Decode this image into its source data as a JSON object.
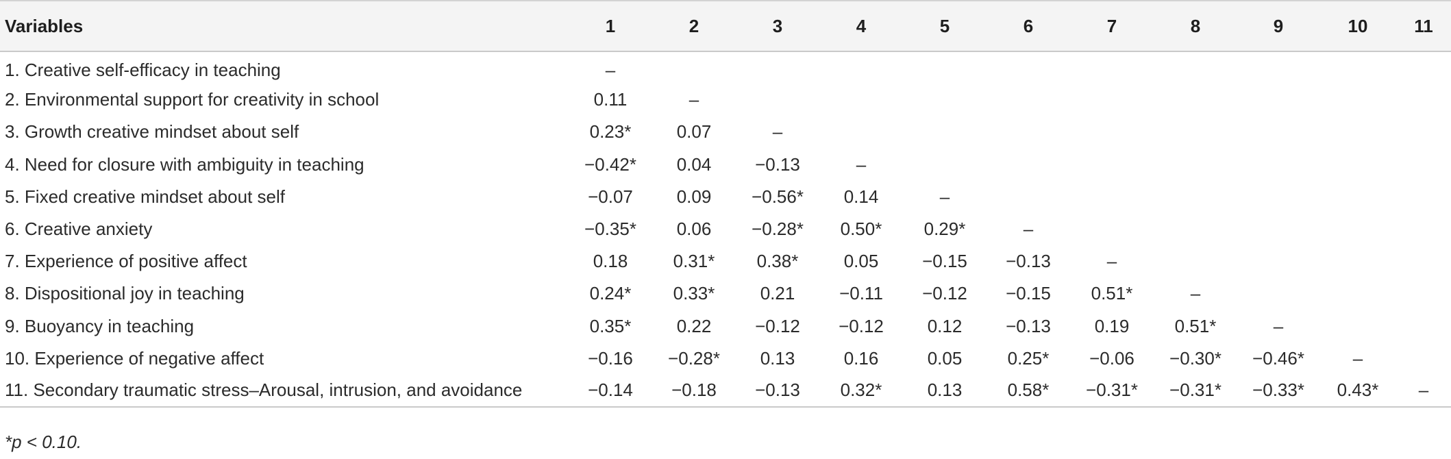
{
  "table": {
    "headers": [
      "Variables",
      "1",
      "2",
      "3",
      "4",
      "5",
      "6",
      "7",
      "8",
      "9",
      "10",
      "11"
    ],
    "rows": [
      {
        "label": "1. Creative self-efficacy in teaching",
        "cells": [
          "–",
          "",
          "",
          "",
          "",
          "",
          "",
          "",
          "",
          "",
          ""
        ]
      },
      {
        "label": "2. Environmental support for creativity in school",
        "cells": [
          "0.11",
          "–",
          "",
          "",
          "",
          "",
          "",
          "",
          "",
          "",
          ""
        ]
      },
      {
        "label": "3. Growth creative mindset about self",
        "cells": [
          "0.23*",
          "0.07",
          "–",
          "",
          "",
          "",
          "",
          "",
          "",
          "",
          ""
        ]
      },
      {
        "label": "4. Need for closure with ambiguity in teaching",
        "cells": [
          "−0.42*",
          "0.04",
          "−0.13",
          "–",
          "",
          "",
          "",
          "",
          "",
          "",
          ""
        ]
      },
      {
        "label": "5. Fixed creative mindset about self",
        "cells": [
          "−0.07",
          "0.09",
          "−0.56*",
          "0.14",
          "–",
          "",
          "",
          "",
          "",
          "",
          ""
        ]
      },
      {
        "label": "6. Creative anxiety",
        "cells": [
          "−0.35*",
          "0.06",
          "−0.28*",
          "0.50*",
          "0.29*",
          "–",
          "",
          "",
          "",
          "",
          ""
        ]
      },
      {
        "label": "7. Experience of positive affect",
        "cells": [
          "0.18",
          "0.31*",
          "0.38*",
          "0.05",
          "−0.15",
          "−0.13",
          "–",
          "",
          "",
          "",
          ""
        ]
      },
      {
        "label": "8. Dispositional joy in teaching",
        "cells": [
          "0.24*",
          "0.33*",
          "0.21",
          "−0.11",
          "−0.12",
          "−0.15",
          "0.51*",
          "–",
          "",
          "",
          ""
        ]
      },
      {
        "label": "9. Buoyancy in teaching",
        "cells": [
          "0.35*",
          "0.22",
          "−0.12",
          "−0.12",
          "0.12",
          "−0.13",
          "0.19",
          "0.51*",
          "–",
          "",
          ""
        ]
      },
      {
        "label": "10. Experience of negative affect",
        "cells": [
          "−0.16",
          "−0.28*",
          "0.13",
          "0.16",
          "0.05",
          "0.25*",
          "−0.06",
          "−0.30*",
          "−0.46*",
          "–",
          ""
        ]
      },
      {
        "label": "11. Secondary traumatic stress–Arousal, intrusion, and avoidance",
        "cells": [
          "−0.14",
          "−0.18",
          "−0.13",
          "0.32*",
          "0.13",
          "0.58*",
          "−0.31*",
          "−0.31*",
          "−0.33*",
          "0.43*",
          "–"
        ]
      }
    ]
  },
  "note": "*p < 0.10."
}
